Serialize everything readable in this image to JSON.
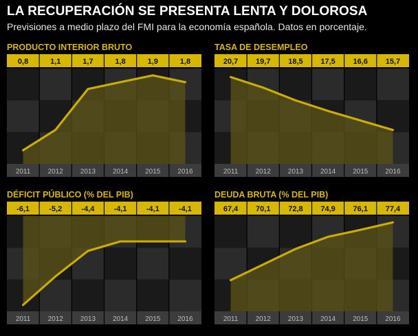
{
  "header": {
    "title": "LA RECUPERACIÓN SE PRESENTA LENTA Y DOLOROSA",
    "subtitle": "Previsiones a medio plazo del FMI para la economía española. Datos en porcentaje."
  },
  "colors": {
    "accent": "#d6b800",
    "line": "#c9ad00",
    "area": "#5e5418",
    "cell_dark": "#1a1a1a",
    "cell_light": "#2b2b2b",
    "axis_band": "#3c3c3c"
  },
  "chart_data": [
    {
      "type": "area",
      "title": "PRODUCTO INTERIOR BRUTO",
      "x": [
        "2011",
        "2012",
        "2013",
        "2014",
        "2015",
        "2016"
      ],
      "labels": [
        "0,8",
        "1,1",
        "1,7",
        "1,8",
        "1,9",
        "1,8"
      ],
      "values": [
        0.8,
        1.1,
        1.7,
        1.8,
        1.9,
        1.8
      ],
      "ylim": [
        0.6,
        2.0
      ],
      "fill_to": "bottom",
      "grid": true
    },
    {
      "type": "area",
      "title": "TASA DE DESEMPLEO",
      "x": [
        "2011",
        "2012",
        "2013",
        "2014",
        "2015",
        "2016"
      ],
      "labels": [
        "20,7",
        "19,7",
        "18,5",
        "17,5",
        "16,6",
        "15,7"
      ],
      "values": [
        20.7,
        19.7,
        18.5,
        17.5,
        16.6,
        15.7
      ],
      "ylim": [
        12.5,
        21.5
      ],
      "fill_to": "bottom",
      "grid": true
    },
    {
      "type": "area",
      "title": "DÉFICIT PÚBLICO (% DEL PIB)",
      "x": [
        "2011",
        "2012",
        "2013",
        "2014",
        "2015",
        "2016"
      ],
      "labels": [
        "-6,1",
        "-5,2",
        "-4,4",
        "-4,1",
        "-4,1",
        "-4,1"
      ],
      "values": [
        -6.1,
        -5.2,
        -4.4,
        -4.1,
        -4.1,
        -4.1
      ],
      "ylim": [
        -6.3,
        -3.3
      ],
      "fill_to": "top",
      "grid": true
    },
    {
      "type": "area",
      "title": "DEUDA BRUTA  (% DEL PIB)",
      "x": [
        "2011",
        "2012",
        "2013",
        "2014",
        "2015",
        "2016"
      ],
      "labels": [
        "67,4",
        "70,1",
        "72,8",
        "74,9",
        "76,1",
        "77,4"
      ],
      "values": [
        67.4,
        70.1,
        72.8,
        74.9,
        76.1,
        77.4
      ],
      "ylim": [
        62,
        78.5
      ],
      "fill_to": "bottom",
      "grid": true
    }
  ]
}
